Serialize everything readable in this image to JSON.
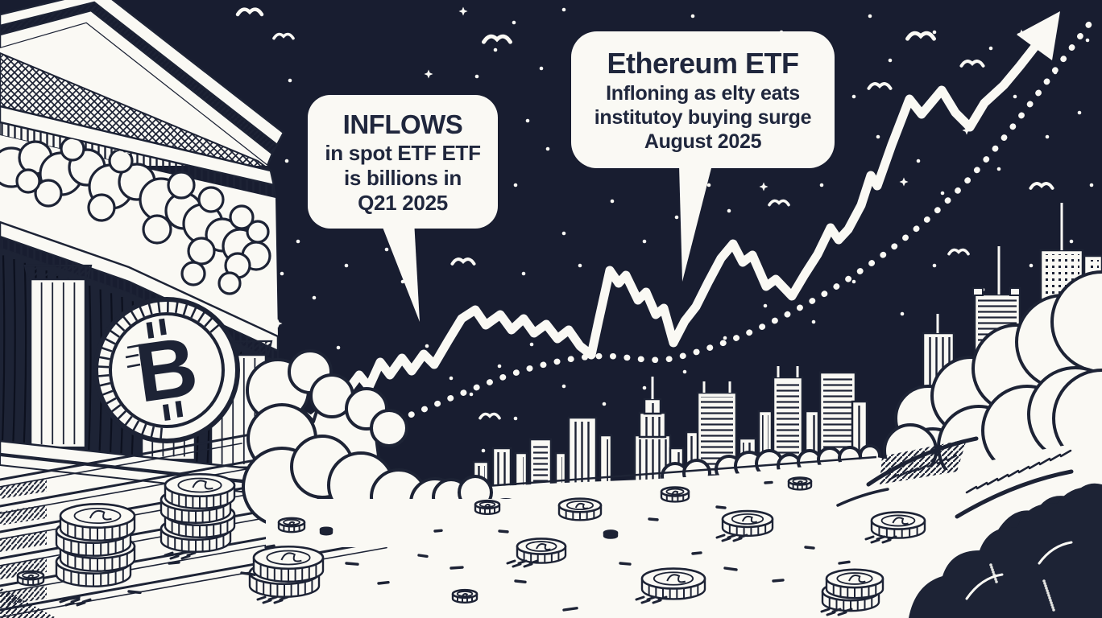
{
  "illustration": {
    "description": "Black and white comic illustration: classical bank with Bitcoin coin, rising ETF trend line over a city skyline, scattered coins",
    "bitcoin_symbol": "B"
  },
  "bubbles": {
    "inflows": {
      "line1": "INFLOWS",
      "line2": "in spot ETF ETF",
      "line3": "is billions in",
      "line4": "Q21 2025"
    },
    "ethereum": {
      "line1": "Ethereum ETF",
      "line2": "Infloning as elty eats",
      "line3": "institutoy buying surge",
      "line4": "August 2025"
    }
  },
  "colors": {
    "sky": "#181d30",
    "ink": "#1d2335",
    "paper": "#faf9f4",
    "text": "#20273d"
  }
}
